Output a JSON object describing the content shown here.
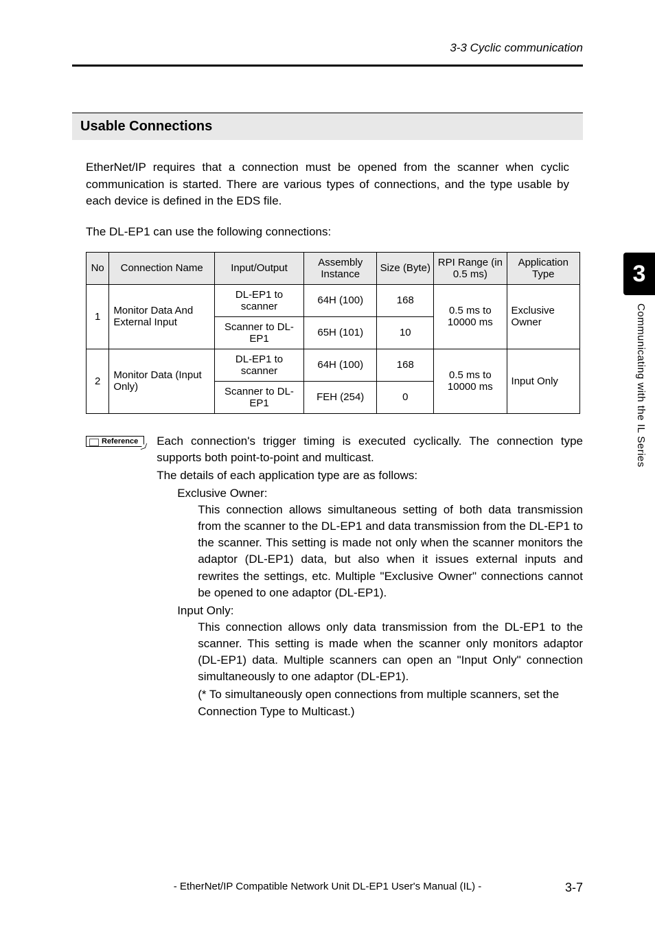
{
  "header": {
    "section_ref": "3-3 Cyclic communication"
  },
  "subsection": {
    "title": "Usable Connections"
  },
  "paragraphs": {
    "intro": "EtherNet/IP requires that a connection must be opened from the scanner when cyclic communication is started. There are various types of connections, and the type usable by each device is defined in the EDS file.",
    "table_lead": "The DL-EP1 can use the following connections:"
  },
  "table": {
    "headers": {
      "no": "No",
      "cname": "Connection Name",
      "io": "Input/Output",
      "asm": "Assembly Instance",
      "size": "Size (Byte)",
      "rpi": "RPI Range (in 0.5 ms)",
      "apptype": "Application Type"
    },
    "rows": [
      {
        "no": "1",
        "cname": "Monitor Data And External Input",
        "io1": "DL-EP1 to scanner",
        "asm1": "64H (100)",
        "size1": "168",
        "io2": "Scanner to DL-EP1",
        "asm2": "65H (101)",
        "size2": "10",
        "rpi": "0.5 ms to 10000 ms",
        "apptype": "Exclusive Owner"
      },
      {
        "no": "2",
        "cname": "Monitor Data (Input Only)",
        "io1": "DL-EP1 to scanner",
        "asm1": "64H (100)",
        "size1": "168",
        "io2": "Scanner to DL-EP1",
        "asm2": "FEH (254)",
        "size2": "0",
        "rpi": "0.5 ms to 10000 ms",
        "apptype": "Input Only"
      }
    ]
  },
  "reference": {
    "tag": "Reference",
    "intro": "Each connection's trigger timing is executed cyclically. The connection type supports both point-to-point and multicast.",
    "details_line": "The details of each application type are as follows:",
    "exclusive_label": "Exclusive Owner:",
    "exclusive_body": "This connection allows simultaneous setting of both data transmission from the scanner to the DL-EP1 and data transmission from the DL-EP1 to the scanner. This setting is made not only when the scanner monitors the adaptor (DL-EP1) data, but also when it issues external inputs and rewrites the settings, etc. Multiple \"Exclusive Owner\" connections cannot be opened to one adaptor (DL-EP1).",
    "input_label": "Input Only:",
    "input_body": "This connection allows only data transmission from the DL-EP1 to the scanner. This setting is made when the scanner only monitors adaptor (DL-EP1) data. Multiple scanners can open an \"Input Only\" connection simultaneously to one adaptor (DL-EP1).",
    "input_note": "(* To simultaneously open connections from multiple scanners, set the Connection Type to Multicast.)"
  },
  "side": {
    "chapter": "3",
    "label": "Communicating with the IL Series"
  },
  "footer": {
    "text": "- EtherNet/IP Compatible Network Unit DL-EP1 User's Manual (IL) -",
    "page": "3-7"
  }
}
